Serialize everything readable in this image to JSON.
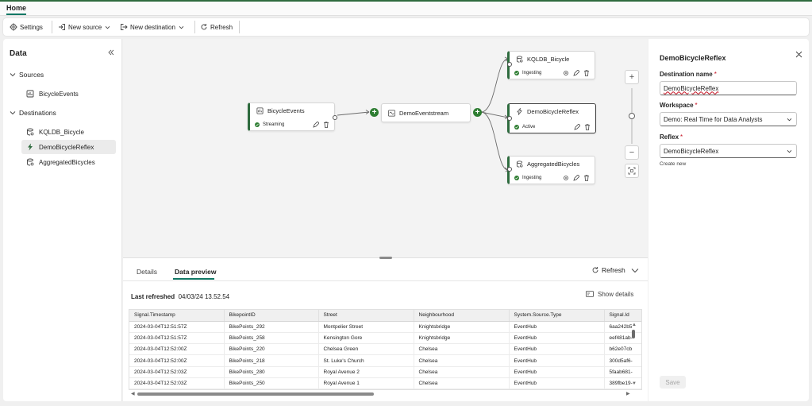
{
  "tabs": {
    "home": "Home"
  },
  "ribbon": {
    "settings": "Settings",
    "new_source": "New source",
    "new_destination": "New destination",
    "refresh": "Refresh"
  },
  "left_panel": {
    "title": "Data",
    "sources_label": "Sources",
    "sources": [
      {
        "label": "BicycleEvents",
        "icon": "table-icon"
      }
    ],
    "destinations_label": "Destinations",
    "destinations": [
      {
        "label": "KQLDB_Bicycle",
        "icon": "database-icon"
      },
      {
        "label": "DemoBicycleReflex",
        "icon": "lightning-icon",
        "selected": true
      },
      {
        "label": "AggregatedBicycles",
        "icon": "database-icon"
      }
    ]
  },
  "canvas": {
    "source_node": {
      "title": "BicycleEvents",
      "status": "Streaming"
    },
    "stream_node": {
      "title": "DemoEventstream"
    },
    "dest_nodes": [
      {
        "title": "KQLDB_Bicycle",
        "status": "Ingesting"
      },
      {
        "title": "DemoBicycleReflex",
        "status": "Active"
      },
      {
        "title": "AggregatedBicycles",
        "status": "Ingesting"
      }
    ],
    "zoom_level": 0.5
  },
  "bottom_panel": {
    "tabs": [
      "Details",
      "Data preview"
    ],
    "active_tab": "Data preview",
    "refresh": "Refresh",
    "last_refreshed_label": "Last refreshed",
    "last_refreshed_value": "04/03/24 13.52.54",
    "show_details": "Show details",
    "table": {
      "columns": [
        "Signal.Timestamp",
        "BikepointID",
        "Street",
        "Neighbourhood",
        "System.Source.Type",
        "Signal.Id"
      ],
      "rows": [
        [
          "2024-03-04T12:51:57Z",
          "BikePoints_292",
          "Montpelier Street",
          "Knightsbridge",
          "EventHub",
          "6aa242b5"
        ],
        [
          "2024-03-04T12:51:57Z",
          "BikePoints_258",
          "Kensington Gore",
          "Knightsbridge",
          "EventHub",
          "eef481ab-"
        ],
        [
          "2024-03-04T12:52:00Z",
          "BikePoints_220",
          "Chelsea Green",
          "Chelsea",
          "EventHub",
          "b62e07cb"
        ],
        [
          "2024-03-04T12:52:00Z",
          "BikePoints_218",
          "St. Luke's Church",
          "Chelsea",
          "EventHub",
          "300d5af6-"
        ],
        [
          "2024-03-04T12:52:03Z",
          "BikePoints_280",
          "Royal Avenue 2",
          "Chelsea",
          "EventHub",
          "5faab681-"
        ],
        [
          "2024-03-04T12:52:03Z",
          "BikePoints_250",
          "Royal Avenue 1",
          "Chelsea",
          "EventHub",
          "389fbe19-"
        ]
      ]
    }
  },
  "right_panel": {
    "title": "DemoBicycleReflex",
    "destination_name_label": "Destination name",
    "destination_name_value": "DemoBicycleReflex",
    "workspace_label": "Workspace",
    "workspace_value": "Demo: Real Time for Data Analysts",
    "reflex_label": "Reflex",
    "reflex_value": "DemoBicycleReflex",
    "create_new": "Create new",
    "save": "Save",
    "required_marker": "*"
  },
  "colors": {
    "accent": "#117865",
    "active_green": "#2e7d32",
    "node_border": "#2e6b3e",
    "required": "#c50f1f"
  }
}
